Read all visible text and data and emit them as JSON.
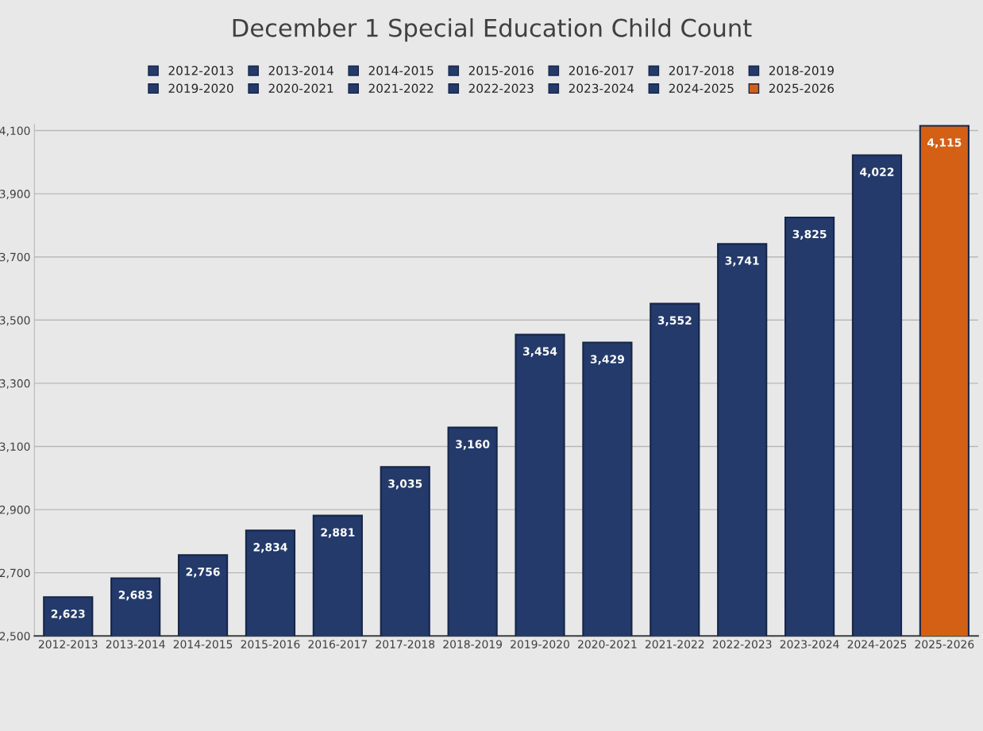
{
  "chart_data": {
    "type": "bar",
    "title": "December 1 Special Education Child Count",
    "categories": [
      "2012-2013",
      "2013-2014",
      "2014-2015",
      "2015-2016",
      "2016-2017",
      "2017-2018",
      "2018-2019",
      "2019-2020",
      "2020-2021",
      "2021-2022",
      "2022-2023",
      "2023-2024",
      "2024-2025",
      "2025-2026"
    ],
    "series": [
      {
        "name": "2012-2013",
        "color": "#243a6b",
        "values": [
          2623,
          null,
          null,
          null,
          null,
          null,
          null,
          null,
          null,
          null,
          null,
          null,
          null,
          null
        ],
        "value_labels": [
          "2,623",
          null,
          null,
          null,
          null,
          null,
          null,
          null,
          null,
          null,
          null,
          null,
          null,
          null
        ]
      },
      {
        "name": "2013-2014",
        "color": "#243a6b",
        "values": [
          null,
          2683,
          null,
          null,
          null,
          null,
          null,
          null,
          null,
          null,
          null,
          null,
          null,
          null
        ],
        "value_labels": [
          null,
          "2,683",
          null,
          null,
          null,
          null,
          null,
          null,
          null,
          null,
          null,
          null,
          null,
          null
        ]
      },
      {
        "name": "2014-2015",
        "color": "#243a6b",
        "values": [
          null,
          null,
          2756,
          null,
          null,
          null,
          null,
          null,
          null,
          null,
          null,
          null,
          null,
          null
        ],
        "value_labels": [
          null,
          null,
          "2,756",
          null,
          null,
          null,
          null,
          null,
          null,
          null,
          null,
          null,
          null,
          null
        ]
      },
      {
        "name": "2015-2016",
        "color": "#243a6b",
        "values": [
          null,
          null,
          null,
          2834,
          null,
          null,
          null,
          null,
          null,
          null,
          null,
          null,
          null,
          null
        ],
        "value_labels": [
          null,
          null,
          null,
          "2,834",
          null,
          null,
          null,
          null,
          null,
          null,
          null,
          null,
          null,
          null
        ]
      },
      {
        "name": "2016-2017",
        "color": "#243a6b",
        "values": [
          null,
          null,
          null,
          null,
          2881,
          null,
          null,
          null,
          null,
          null,
          null,
          null,
          null,
          null
        ],
        "value_labels": [
          null,
          null,
          null,
          null,
          "2,881",
          null,
          null,
          null,
          null,
          null,
          null,
          null,
          null,
          null
        ]
      },
      {
        "name": "2017-2018",
        "color": "#243a6b",
        "values": [
          null,
          null,
          null,
          null,
          null,
          3035,
          null,
          null,
          null,
          null,
          null,
          null,
          null,
          null
        ],
        "value_labels": [
          null,
          null,
          null,
          null,
          null,
          "3,035",
          null,
          null,
          null,
          null,
          null,
          null,
          null,
          null
        ]
      },
      {
        "name": "2018-2019",
        "color": "#243a6b",
        "values": [
          null,
          null,
          null,
          null,
          null,
          null,
          3160,
          null,
          null,
          null,
          null,
          null,
          null,
          null
        ],
        "value_labels": [
          null,
          null,
          null,
          null,
          null,
          null,
          "3,160",
          null,
          null,
          null,
          null,
          null,
          null,
          null
        ]
      },
      {
        "name": "2019-2020",
        "color": "#243a6b",
        "values": [
          null,
          null,
          null,
          null,
          null,
          null,
          null,
          3454,
          null,
          null,
          null,
          null,
          null,
          null
        ],
        "value_labels": [
          null,
          null,
          null,
          null,
          null,
          null,
          null,
          "3,454",
          null,
          null,
          null,
          null,
          null,
          null
        ]
      },
      {
        "name": "2020-2021",
        "color": "#243a6b",
        "values": [
          null,
          null,
          null,
          null,
          null,
          null,
          null,
          null,
          3429,
          null,
          null,
          null,
          null,
          null
        ],
        "value_labels": [
          null,
          null,
          null,
          null,
          null,
          null,
          null,
          null,
          "3,429",
          null,
          null,
          null,
          null,
          null
        ]
      },
      {
        "name": "2021-2022",
        "color": "#243a6b",
        "values": [
          null,
          null,
          null,
          null,
          null,
          null,
          null,
          null,
          null,
          3552,
          null,
          null,
          null,
          null
        ],
        "value_labels": [
          null,
          null,
          null,
          null,
          null,
          null,
          null,
          null,
          null,
          "3,552",
          null,
          null,
          null,
          null
        ]
      },
      {
        "name": "2022-2023",
        "color": "#243a6b",
        "values": [
          null,
          null,
          null,
          null,
          null,
          null,
          null,
          null,
          null,
          null,
          3741,
          null,
          null,
          null
        ],
        "value_labels": [
          null,
          null,
          null,
          null,
          null,
          null,
          null,
          null,
          null,
          null,
          "3,741",
          null,
          null,
          null
        ]
      },
      {
        "name": "2023-2024",
        "color": "#243a6b",
        "values": [
          null,
          null,
          null,
          null,
          null,
          null,
          null,
          null,
          null,
          null,
          null,
          3825,
          null,
          null
        ],
        "value_labels": [
          null,
          null,
          null,
          null,
          null,
          null,
          null,
          null,
          null,
          null,
          null,
          "3,825",
          null,
          null
        ]
      },
      {
        "name": "2024-2025",
        "color": "#243a6b",
        "values": [
          null,
          null,
          null,
          null,
          null,
          null,
          null,
          null,
          null,
          null,
          null,
          null,
          4022,
          null
        ],
        "value_labels": [
          null,
          null,
          null,
          null,
          null,
          null,
          null,
          null,
          null,
          null,
          null,
          null,
          "4,022",
          null
        ]
      },
      {
        "name": "2025-2026",
        "color": "#d46015",
        "values": [
          null,
          null,
          null,
          null,
          null,
          null,
          null,
          null,
          null,
          null,
          null,
          null,
          null,
          4115
        ],
        "value_labels": [
          null,
          null,
          null,
          null,
          null,
          null,
          null,
          null,
          null,
          null,
          null,
          null,
          null,
          "4,115"
        ]
      }
    ],
    "ylim": [
      2500,
      4120
    ],
    "yticks": [
      {
        "value": 2500,
        "label": "2,500"
      },
      {
        "value": 2700,
        "label": "2,700"
      },
      {
        "value": 2900,
        "label": "2,900"
      },
      {
        "value": 3100,
        "label": "3,100"
      },
      {
        "value": 3300,
        "label": "3,300"
      },
      {
        "value": 3500,
        "label": "3,500"
      },
      {
        "value": 3700,
        "label": "3,700"
      },
      {
        "value": 3900,
        "label": "3,900"
      },
      {
        "value": 4100,
        "label": "4,100"
      }
    ],
    "grid": "y",
    "legend": "top"
  }
}
